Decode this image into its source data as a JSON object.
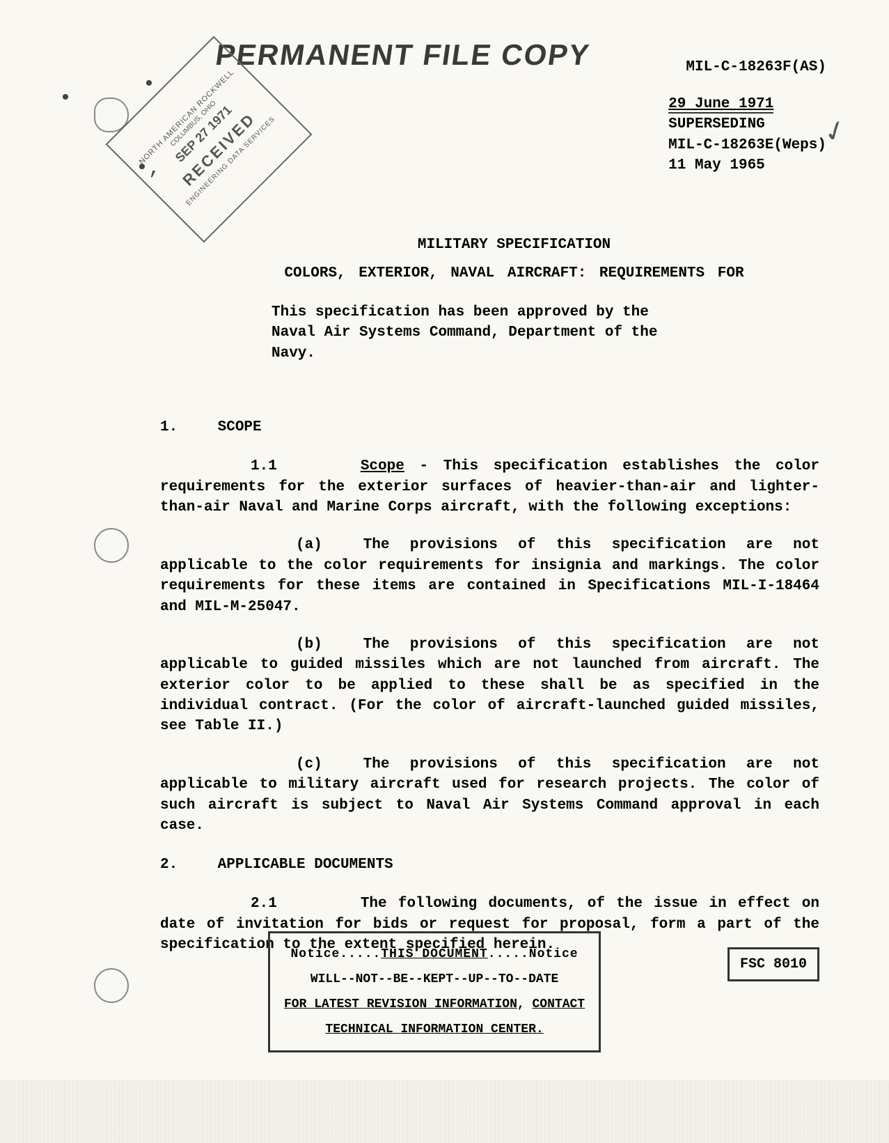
{
  "stamp_header": "PERMANENT FILE COPY",
  "spec_number": "MIL-C-18263F(AS)",
  "dates": {
    "current": "29 June 1971",
    "superseding_label": "SUPERSEDING",
    "previous_spec": "MIL-C-18263E(Weps)",
    "previous_date": "11 May 1965"
  },
  "received_stamp": {
    "company": "NORTH AMERICAN ROCKWELL",
    "location": "COLUMBUS, OHIO",
    "date": "SEP 27 1971",
    "received": "RECEIVED",
    "dept": "ENGINEERING DATA SERVICES"
  },
  "title": "MILITARY SPECIFICATION",
  "subtitle": "COLORS, EXTERIOR, NAVAL AIRCRAFT:  REQUIREMENTS FOR",
  "approval": "This specification has been approved by the Naval Air Systems Command, Department of the Navy.",
  "sections": {
    "s1": {
      "num": "1.",
      "heading": "SCOPE"
    },
    "s1_1": {
      "num": "1.1",
      "label": "Scope",
      "text": " - This specification establishes the color requirements for the exterior surfaces of heavier-than-air and lighter-than-air Naval and Marine Corps aircraft, with the following exceptions:"
    },
    "s1_1a": {
      "letter": "(a)",
      "text": "The provisions of this specification are not applicable to the color requirements for insignia and markings.  The color requirements for these items are contained in Specifications MIL-I-18464 and MIL-M-25047."
    },
    "s1_1b": {
      "letter": "(b)",
      "text": "The provisions of this specification are not applicable to guided missiles which are not launched from aircraft.  The exterior color to be applied to these shall be as specified in the individual contract.  (For the color of aircraft-launched guided missiles, see Table II.)"
    },
    "s1_1c": {
      "letter": "(c)",
      "text": "The provisions of this specification are not applicable to military aircraft used for research projects.  The color of such aircraft is subject to Naval Air Systems Command approval in each case."
    },
    "s2": {
      "num": "2.",
      "heading": "APPLICABLE DOCUMENTS"
    },
    "s2_1": {
      "num": "2.1",
      "text": "The following documents, of the issue in effect on date of invitation for bids or request for proposal, form a part of the specification to the extent specified herein."
    }
  },
  "notice": {
    "line1_a": "Notice.....",
    "line1_b": "THIS DOCUMENT",
    "line1_c": ".....Notice",
    "line2": "WILL--NOT--BE--KEPT--UP--TO--DATE",
    "line3_a": "FOR ",
    "line3_b": "LATEST REVISION INFORMATION",
    "line3_c": ", ",
    "line3_d": "CONTACT",
    "line4": "TECHNICAL INFORMATION CENTER."
  },
  "fsc": "FSC 8010"
}
